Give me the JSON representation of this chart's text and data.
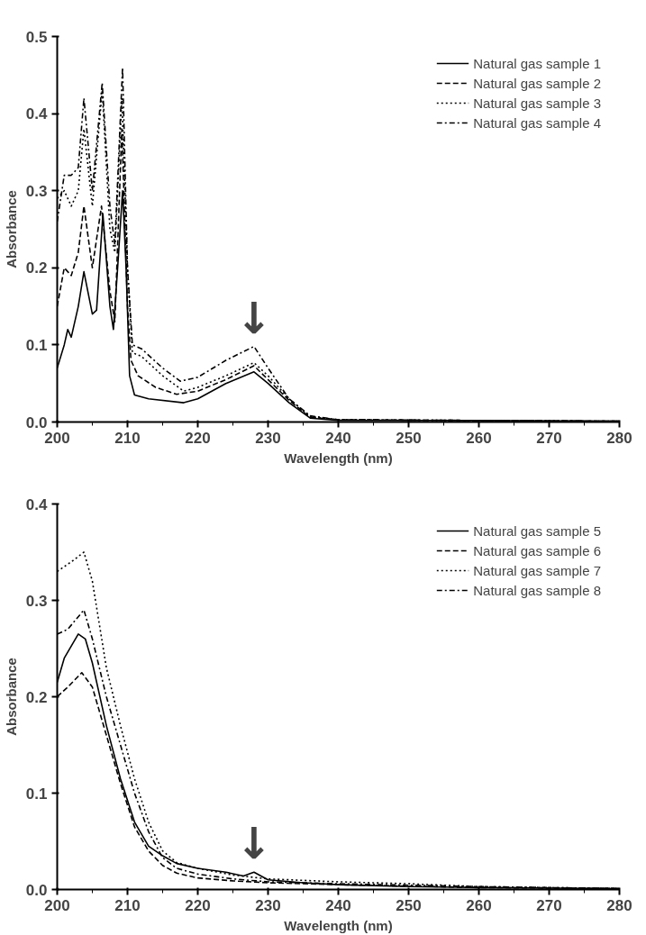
{
  "chart_data": [
    {
      "type": "line",
      "xlabel": "Wavelength (nm)",
      "ylabel": "Absorbance",
      "xlim": [
        200,
        280
      ],
      "ylim": [
        0,
        0.5
      ],
      "xticks": [
        200,
        210,
        220,
        230,
        240,
        250,
        260,
        270,
        280
      ],
      "yticks": [
        {
          "value": 0,
          "label": "0.0"
        },
        0.1,
        0.2,
        0.3,
        0.4,
        0.5
      ],
      "grid": false,
      "legend": "top right",
      "marker": "none",
      "annotations": [
        {
          "text": "↓",
          "x": 228,
          "y": 0.098
        }
      ],
      "series": [
        {
          "name": "Natural gas sample 1",
          "color": "#000000",
          "line_style": "solid",
          "x": [
            200,
            201,
            201.5,
            202,
            203,
            203.8,
            205,
            205.6,
            206.5,
            207.5,
            208,
            208.6,
            209.3,
            209.8,
            210.3,
            211,
            213,
            218,
            220,
            224,
            228,
            230,
            233,
            236,
            240,
            250,
            260,
            280
          ],
          "values": [
            0.07,
            0.1,
            0.12,
            0.11,
            0.15,
            0.195,
            0.14,
            0.145,
            0.27,
            0.15,
            0.12,
            0.2,
            0.3,
            0.2,
            0.06,
            0.035,
            0.03,
            0.025,
            0.03,
            0.05,
            0.065,
            0.05,
            0.025,
            0.005,
            0.002,
            0.002,
            0.002,
            0.001
          ]
        },
        {
          "name": "Natural gas sample 2",
          "color": "#000000",
          "line_style": "dashed",
          "x": [
            200,
            201,
            202,
            203,
            203.8,
            205,
            206.3,
            207.5,
            208.2,
            209.2,
            210,
            210.5,
            211.5,
            214,
            217,
            220,
            224,
            228,
            230,
            233,
            236,
            240,
            260,
            280
          ],
          "values": [
            0.15,
            0.2,
            0.19,
            0.22,
            0.28,
            0.2,
            0.28,
            0.17,
            0.13,
            0.38,
            0.15,
            0.08,
            0.06,
            0.045,
            0.036,
            0.04,
            0.055,
            0.073,
            0.055,
            0.028,
            0.006,
            0.003,
            0.002,
            0.001
          ]
        },
        {
          "name": "Natural gas sample 3",
          "color": "#000000",
          "line_style": "dotted",
          "x": [
            200,
            201,
            202,
            203,
            203.8,
            205,
            206.4,
            207.5,
            208.2,
            209.2,
            210,
            210.7,
            212,
            215,
            218,
            220,
            224,
            228,
            230,
            233,
            236,
            240,
            280
          ],
          "values": [
            0.29,
            0.3,
            0.28,
            0.3,
            0.38,
            0.28,
            0.43,
            0.25,
            0.22,
            0.42,
            0.2,
            0.09,
            0.085,
            0.06,
            0.04,
            0.045,
            0.06,
            0.077,
            0.06,
            0.03,
            0.007,
            0.003,
            0.001
          ]
        },
        {
          "name": "Natural gas sample 4",
          "color": "#000000",
          "line_style": "dashdot",
          "x": [
            200,
            201,
            202,
            203,
            203.8,
            205,
            206.4,
            207.5,
            208.2,
            209.3,
            210,
            210.7,
            212,
            215,
            217.5,
            220,
            224,
            228,
            230,
            233,
            236,
            240,
            280
          ],
          "values": [
            0.26,
            0.32,
            0.32,
            0.33,
            0.42,
            0.3,
            0.44,
            0.28,
            0.23,
            0.46,
            0.2,
            0.1,
            0.095,
            0.07,
            0.053,
            0.058,
            0.08,
            0.098,
            0.07,
            0.03,
            0.008,
            0.003,
            0.001
          ]
        }
      ]
    },
    {
      "type": "line",
      "xlabel": "Wavelength (nm)",
      "ylabel": "Absorbance",
      "xlim": [
        200,
        280
      ],
      "ylim": [
        0,
        0.4
      ],
      "xticks": [
        200,
        210,
        220,
        230,
        240,
        250,
        260,
        270,
        280
      ],
      "yticks": [
        {
          "value": 0,
          "label": "0.0"
        },
        0.1,
        0.2,
        0.3,
        0.4
      ],
      "grid": false,
      "legend": "top right",
      "marker": "none",
      "annotations": [
        {
          "text": "↓",
          "x": 228,
          "y": 0.018
        }
      ],
      "series": [
        {
          "name": "Natural gas sample 5",
          "color": "#000000",
          "line_style": "solid",
          "x": [
            200,
            201,
            203,
            204,
            205,
            207,
            209,
            211,
            213,
            215,
            217,
            220,
            224,
            226.5,
            228,
            230,
            235,
            240,
            250,
            260,
            280
          ],
          "values": [
            0.215,
            0.24,
            0.265,
            0.26,
            0.235,
            0.17,
            0.115,
            0.07,
            0.045,
            0.035,
            0.027,
            0.022,
            0.018,
            0.014,
            0.018,
            0.01,
            0.007,
            0.005,
            0.003,
            0.002,
            0.001
          ]
        },
        {
          "name": "Natural gas sample 6",
          "color": "#000000",
          "line_style": "dashed",
          "x": [
            200,
            201.5,
            203.5,
            205,
            207,
            209,
            211,
            213,
            215,
            217,
            220,
            225,
            230,
            240,
            260,
            280
          ],
          "values": [
            0.2,
            0.21,
            0.225,
            0.21,
            0.16,
            0.11,
            0.065,
            0.04,
            0.025,
            0.017,
            0.012,
            0.009,
            0.007,
            0.005,
            0.002,
            0.001
          ]
        },
        {
          "name": "Natural gas sample 7",
          "color": "#000000",
          "line_style": "dotted",
          "x": [
            200,
            202,
            203.8,
            205,
            207,
            209,
            211,
            213,
            215,
            217,
            220,
            225,
            230,
            240,
            250,
            260,
            280
          ],
          "values": [
            0.33,
            0.34,
            0.35,
            0.32,
            0.23,
            0.17,
            0.115,
            0.07,
            0.04,
            0.028,
            0.022,
            0.015,
            0.011,
            0.008,
            0.006,
            0.003,
            0.001
          ]
        },
        {
          "name": "Natural gas sample 8",
          "color": "#000000",
          "line_style": "dashdot",
          "x": [
            200,
            201.5,
            203.8,
            205,
            207,
            209,
            211,
            213,
            215,
            217,
            220,
            225,
            230,
            240,
            260,
            280
          ],
          "values": [
            0.265,
            0.27,
            0.29,
            0.26,
            0.2,
            0.15,
            0.1,
            0.06,
            0.033,
            0.022,
            0.016,
            0.011,
            0.008,
            0.006,
            0.003,
            0.001
          ]
        }
      ]
    }
  ]
}
